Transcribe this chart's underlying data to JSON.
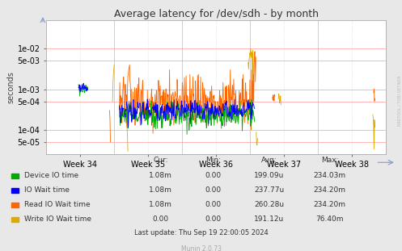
{
  "title": "Average latency for /dev/sdh - by month",
  "ylabel": "seconds",
  "xlabel_ticks": [
    "Week 34",
    "Week 35",
    "Week 36",
    "Week 37",
    "Week 38"
  ],
  "background_color": "#e8e8e8",
  "plot_bg_color": "#ffffff",
  "grid_color_h": "#ffaaaa",
  "grid_color_v": "#ccccdd",
  "colors": {
    "device_io": "#00aa00",
    "io_wait": "#0000ff",
    "read_io_wait": "#ff6600",
    "write_io_wait": "#ddaa00"
  },
  "legend": [
    {
      "label": "Device IO time",
      "color": "#00aa00"
    },
    {
      "label": "IO Wait time",
      "color": "#0000ff"
    },
    {
      "label": "Read IO Wait time",
      "color": "#ff6600"
    },
    {
      "label": "Write IO Wait time",
      "color": "#ddaa00"
    }
  ],
  "stats_header": [
    "Cur:",
    "Min:",
    "Avg:",
    "Max:"
  ],
  "stats": [
    {
      "name": "Device IO time",
      "cur": "1.08m",
      "min": "0.00",
      "avg": "199.09u",
      "max": "234.03m"
    },
    {
      "name": "IO Wait time",
      "cur": "1.08m",
      "min": "0.00",
      "avg": "237.77u",
      "max": "234.20m"
    },
    {
      "name": "Read IO Wait time",
      "cur": "1.08m",
      "min": "0.00",
      "avg": "260.28u",
      "max": "234.20m"
    },
    {
      "name": "Write IO Wait time",
      "cur": "0.00",
      "min": "0.00",
      "avg": "191.12u",
      "max": "76.40m"
    }
  ],
  "last_update": "Last update: Thu Sep 19 22:00:05 2024",
  "munin_version": "Munin 2.0.73",
  "watermark": "RRDTOOL / TOBI OETIKER"
}
